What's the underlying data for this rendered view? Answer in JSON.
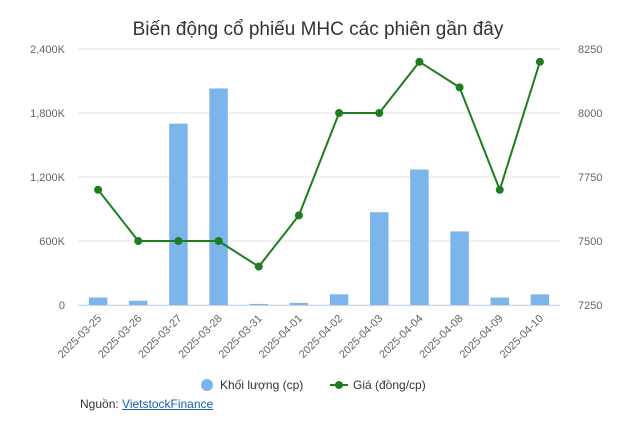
{
  "chart_data": {
    "type": "bar+line",
    "title": "Biến động cổ phiếu MHC các phiên gần đây",
    "categories": [
      "2025-03-25",
      "2025-03-26",
      "2025-03-27",
      "2025-03-28",
      "2025-03-31",
      "2025-04-01",
      "2025-04-02",
      "2025-04-03",
      "2025-04-04",
      "2025-04-08",
      "2025-04-09",
      "2025-04-10"
    ],
    "series": [
      {
        "name": "Khối lượng (cp)",
        "type": "bar",
        "axis": "left",
        "color": "#7cb5ec",
        "values": [
          70000,
          40000,
          1700000,
          2030000,
          10000,
          20000,
          100000,
          870000,
          1270000,
          690000,
          70000,
          100000
        ]
      },
      {
        "name": "Giá (đồng/cp)",
        "type": "line",
        "axis": "right",
        "color": "#1e7d1e",
        "values": [
          7700,
          7500,
          7500,
          7500,
          7400,
          7600,
          8000,
          8000,
          8200,
          8100,
          7700,
          8200
        ]
      }
    ],
    "y_left": {
      "min": 0,
      "max": 2400000,
      "ticks": [
        0,
        600000,
        1200000,
        1800000,
        2400000
      ],
      "tick_labels": [
        "0",
        "600K",
        "1,200K",
        "1,800K",
        "2,400K"
      ]
    },
    "y_right": {
      "min": 7250,
      "max": 8250,
      "ticks": [
        7250,
        7500,
        7750,
        8000,
        8250
      ],
      "tick_labels": [
        "7250",
        "7500",
        "7750",
        "8000",
        "8250"
      ]
    },
    "grid": true,
    "legend_position": "bottom"
  },
  "source": {
    "label": "Nguồn:",
    "link_text": "VietstockFinance"
  }
}
